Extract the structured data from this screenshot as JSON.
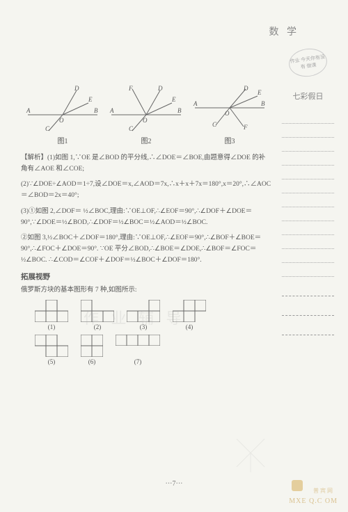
{
  "header": {
    "subject": "数 学",
    "badge_text": "作业\n今天你有没有\n做课"
  },
  "sidebar": {
    "title": "七彩假日",
    "dotted_lines": 12,
    "dashed_lines": 3
  },
  "figures": {
    "fig1": {
      "label": "图1",
      "points": [
        "A",
        "B",
        "C",
        "D",
        "E",
        "O"
      ]
    },
    "fig2": {
      "label": "图2",
      "points": [
        "A",
        "B",
        "C",
        "D",
        "E",
        "F",
        "O"
      ]
    },
    "fig3": {
      "label": "图3",
      "points": [
        "A",
        "B",
        "C",
        "D",
        "E",
        "F",
        "O"
      ]
    }
  },
  "body": {
    "p1": "【解析】(1)如图 1,∵OE 是∠BOD 的平分线,∴∠DOE＝∠BOE,由题意得∠DOE 的补角有∠AOE 和∠COE;",
    "p2": "(2)∵∠DOE÷∠AOD＝1÷7,设∠DOE＝x,∠AOD＝7x,∴x＋x＋7x＝180°,x＝20°,∴∠AOC＝∠BOD＝2x＝40°;",
    "p3": "(3)①如图 2,∠DOF＝ ½∠BOC,理由:∵OE⊥OF,∴∠EOF＝90°,∴∠DOF＋∠DOE＝90°,∵∠DOE＝½∠BOD,∴∠DOF＝½∠BOC＝½∠AOD＝½∠BOC.",
    "p4": "②如图 3,½∠BOC＋∠DOF＝180°,理由:∵OE⊥OF,∴∠EOF＝90°,∴∠BOF＋∠BOE＝90°,∴∠FOC＋∠DOE＝90°. ∵OE 平分∠BOD,∴∠BOE＝∠DOE,∴∠BOF＝∠FOC＝½∠BOC. ∴∠COD＝∠COF＋∠DOF＝½∠BOC＋∠DOF＝180°.",
    "section": "拓展视野",
    "p5": "俄罗斯方块的基本图形有 7 种,如图所示:",
    "tet_labels_1": [
      "(1)",
      "(2)",
      "(3)",
      "(4)"
    ],
    "tet_labels_2": [
      "(5)",
      "(6)",
      "(7)"
    ]
  },
  "footer": {
    "page": "···7···"
  },
  "watermarks": {
    "faint": "作 业 辅 导",
    "brand_top": "普宾网",
    "brand_bottom": "MXE Q.C OM"
  },
  "colors": {
    "bg": "#f5f5f0",
    "text": "#555555",
    "line": "#666666",
    "dot": "#aaaaaa",
    "wm": "#c8a050"
  }
}
